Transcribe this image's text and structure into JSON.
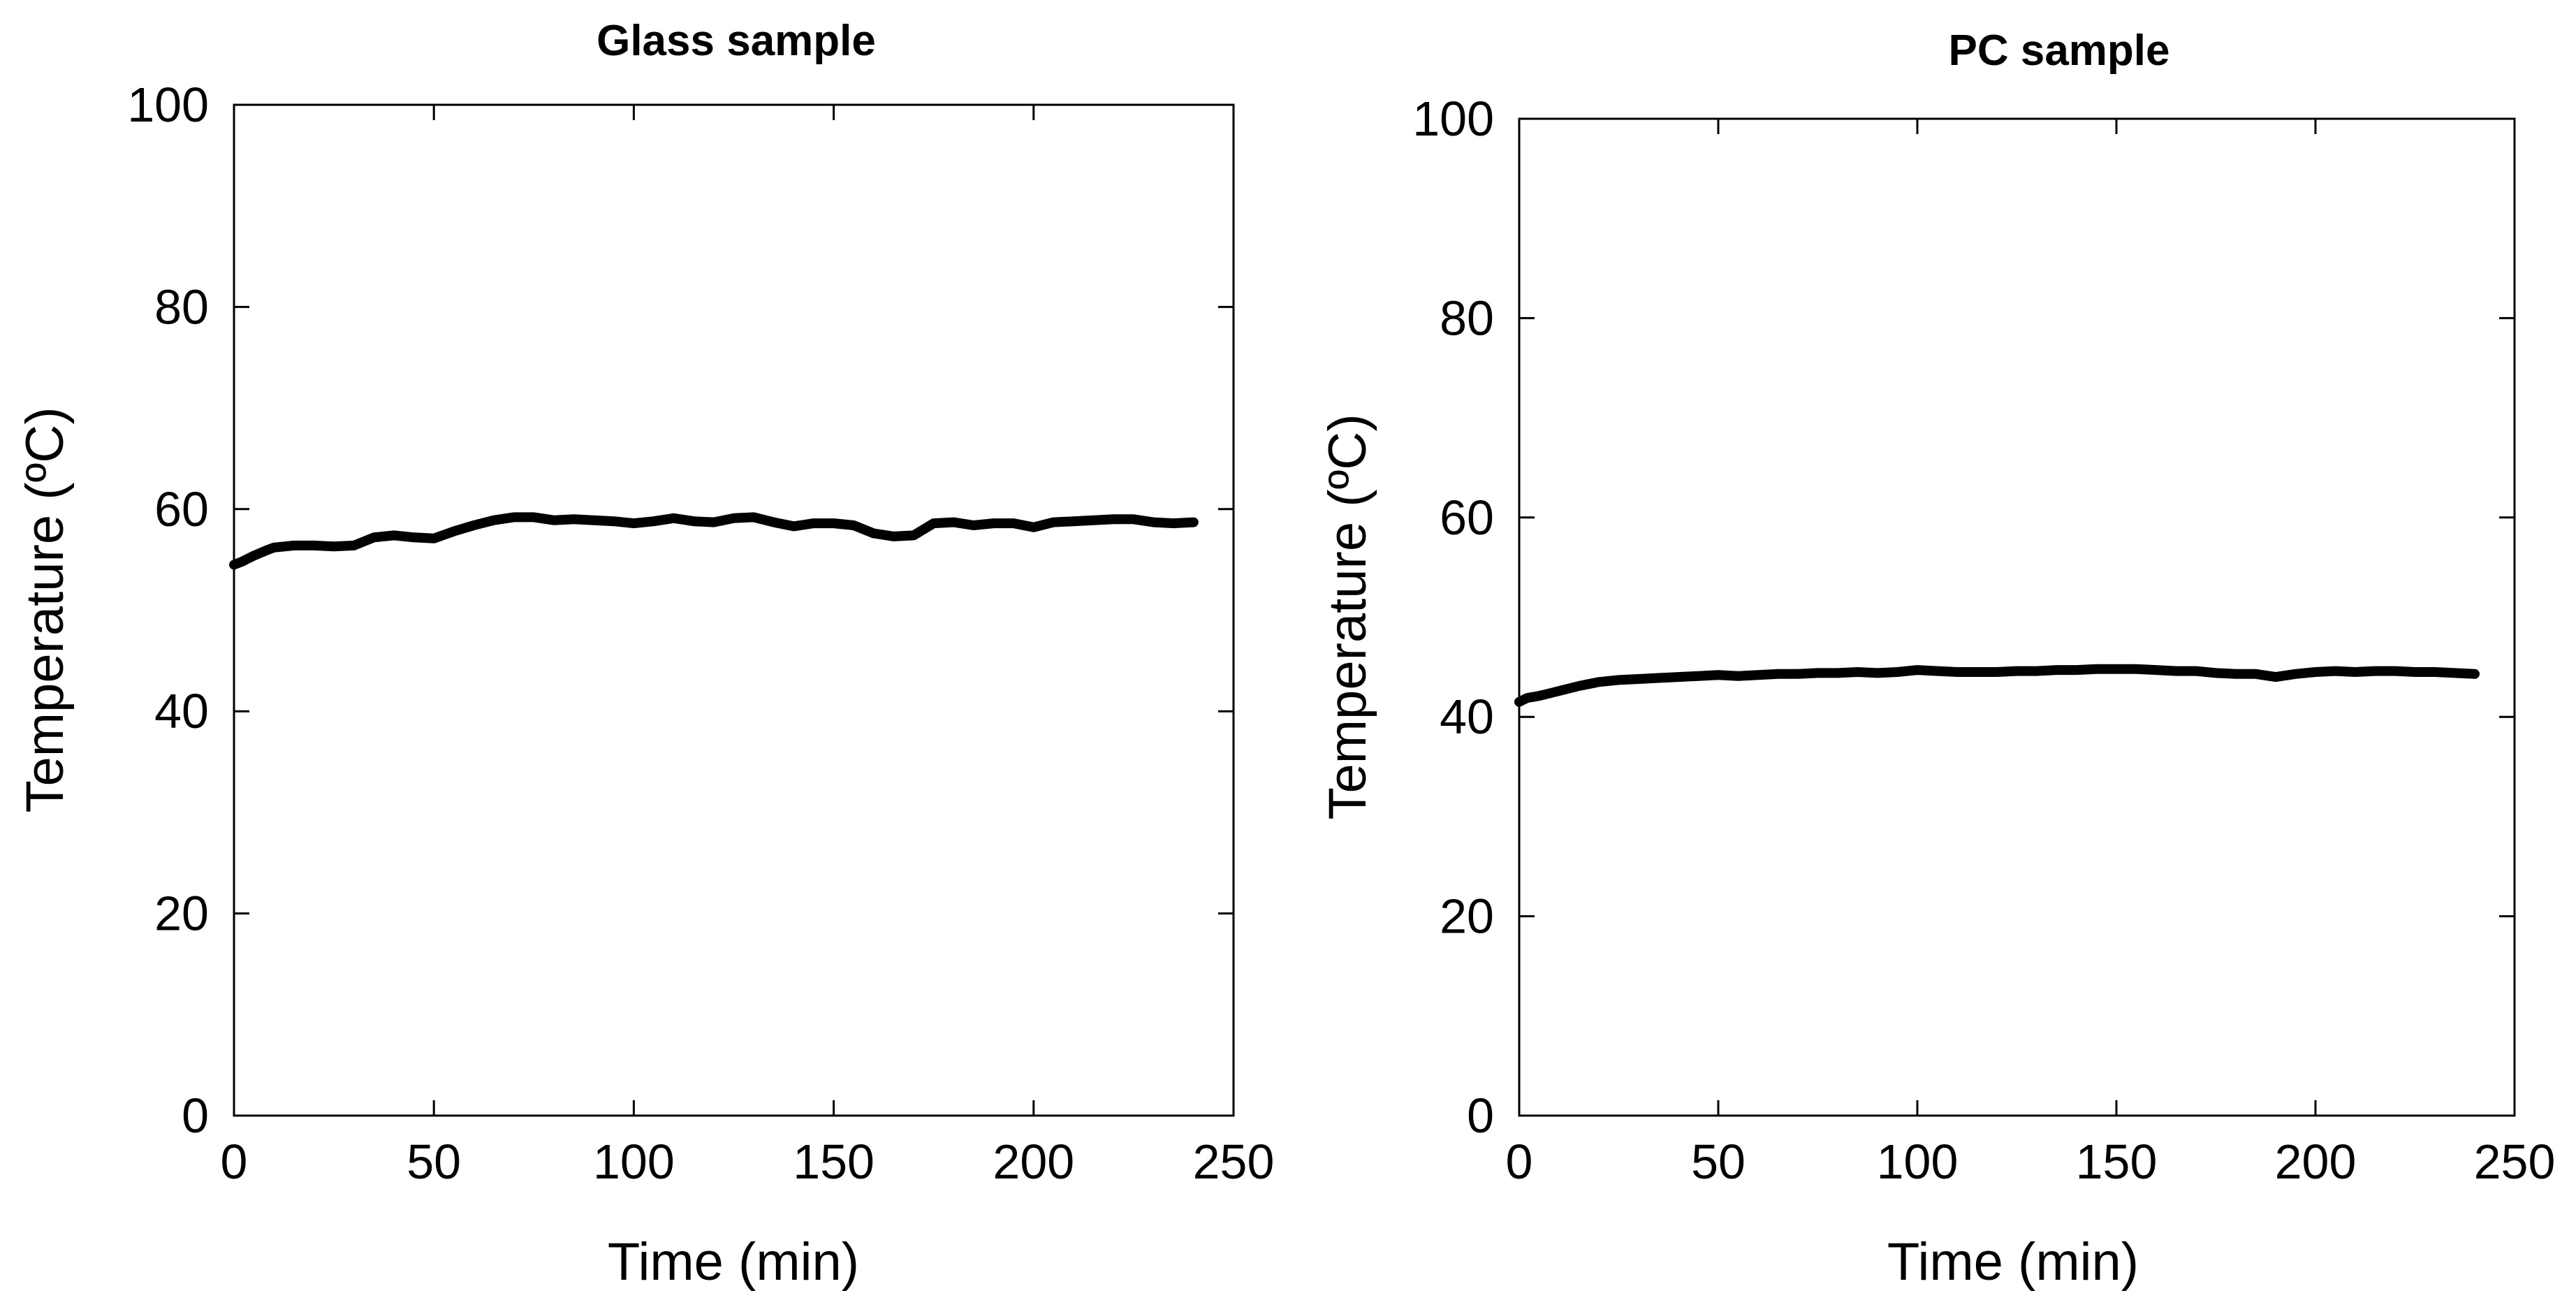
{
  "chart_data": [
    {
      "type": "line",
      "title": "Glass sample",
      "xlabel": "Time (min)",
      "ylabel": "Temperature (ºC)",
      "xlim": [
        0,
        250
      ],
      "ylim": [
        0,
        100
      ],
      "x_ticks": [
        "0",
        "50",
        "100",
        "150",
        "200",
        "250"
      ],
      "y_ticks": [
        "0",
        "20",
        "40",
        "60",
        "80",
        "100"
      ],
      "grid": false,
      "series": [
        {
          "name": "Glass sample",
          "color": "#000000",
          "x": [
            0,
            2,
            5,
            8,
            10,
            15,
            20,
            25,
            30,
            35,
            40,
            45,
            50,
            55,
            60,
            65,
            70,
            75,
            80,
            85,
            90,
            95,
            100,
            105,
            110,
            115,
            120,
            125,
            130,
            135,
            140,
            145,
            150,
            155,
            160,
            165,
            170,
            175,
            180,
            185,
            190,
            195,
            200,
            205,
            210,
            215,
            220,
            225,
            230,
            235,
            240
          ],
          "y": [
            54.5,
            54.8,
            55.4,
            55.9,
            56.2,
            56.4,
            56.4,
            56.3,
            56.4,
            57.2,
            57.4,
            57.2,
            57.1,
            57.8,
            58.4,
            58.9,
            59.2,
            59.2,
            58.9,
            59.0,
            58.9,
            58.8,
            58.6,
            58.8,
            59.1,
            58.8,
            58.7,
            59.1,
            59.2,
            58.7,
            58.3,
            58.6,
            58.6,
            58.4,
            57.6,
            57.3,
            57.4,
            58.6,
            58.7,
            58.4,
            58.6,
            58.6,
            58.2,
            58.7,
            58.8,
            58.9,
            59.0,
            59.0,
            58.7,
            58.6,
            58.7
          ]
        }
      ]
    },
    {
      "type": "line",
      "title": "PC sample",
      "xlabel": "Time (min)",
      "ylabel": "Temperature (ºC)",
      "xlim": [
        0,
        250
      ],
      "ylim": [
        0,
        100
      ],
      "x_ticks": [
        "0",
        "50",
        "100",
        "150",
        "200",
        "250"
      ],
      "y_ticks": [
        "0",
        "20",
        "40",
        "60",
        "80",
        "100"
      ],
      "grid": false,
      "series": [
        {
          "name": "PC sample",
          "color": "#000000",
          "x": [
            0,
            2,
            5,
            8,
            10,
            15,
            20,
            25,
            30,
            35,
            40,
            45,
            50,
            55,
            60,
            65,
            70,
            75,
            80,
            85,
            90,
            95,
            100,
            105,
            110,
            115,
            120,
            125,
            130,
            135,
            140,
            145,
            150,
            155,
            160,
            165,
            170,
            175,
            180,
            185,
            190,
            195,
            200,
            205,
            210,
            215,
            220,
            225,
            230,
            235,
            240
          ],
          "y": [
            41.5,
            41.9,
            42.1,
            42.4,
            42.6,
            43.1,
            43.5,
            43.7,
            43.8,
            43.9,
            44.0,
            44.1,
            44.2,
            44.1,
            44.2,
            44.3,
            44.3,
            44.4,
            44.4,
            44.5,
            44.4,
            44.5,
            44.7,
            44.6,
            44.5,
            44.5,
            44.5,
            44.6,
            44.6,
            44.7,
            44.7,
            44.8,
            44.8,
            44.8,
            44.7,
            44.6,
            44.6,
            44.4,
            44.3,
            44.3,
            44.0,
            44.3,
            44.5,
            44.6,
            44.5,
            44.6,
            44.6,
            44.5,
            44.5,
            44.4,
            44.3
          ]
        }
      ]
    }
  ]
}
